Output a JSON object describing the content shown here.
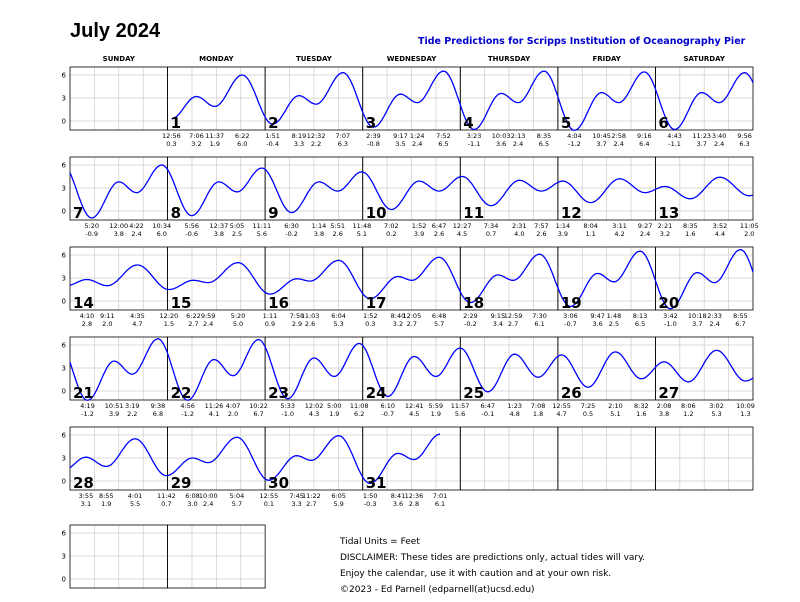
{
  "title": "July 2024",
  "subtitle": "Tide Predictions for Scripps Institution of Oceanography Pier",
  "weekdays": [
    "SUNDAY",
    "MONDAY",
    "TUESDAY",
    "WEDNESDAY",
    "THURSDAY",
    "FRIDAY",
    "SATURDAY"
  ],
  "footer": [
    "Tidal Units = Feet",
    "DISCLAIMER: These tides are predictions only, actual tides will vary.",
    "Enjoy the calendar, use it with caution and at your own risk.",
    "©2023 - Ed Parnell (edparnell(at)ucsd.edu)"
  ],
  "colors": {
    "curve": "#0000ff",
    "grid": "#cccccc",
    "border": "#000000",
    "subtitle": "#0000cc"
  },
  "chart_data": {
    "type": "line",
    "ylabel": "",
    "yticks": [
      0,
      3,
      6
    ],
    "ylim": [
      -1.5,
      7
    ],
    "grid": true,
    "units": "Feet",
    "first_weekday_index": 1,
    "days": [
      {
        "day": 1,
        "tides": [
          [
            "12:56",
            0.3
          ],
          [
            "7:06",
            3.2
          ],
          [
            "11:37",
            1.9
          ],
          [
            "6:22",
            6.0
          ]
        ]
      },
      {
        "day": 2,
        "tides": [
          [
            "1:51",
            -0.4
          ],
          [
            "8:19",
            3.3
          ],
          [
            "12:32",
            2.2
          ],
          [
            "7:07",
            6.3
          ]
        ]
      },
      {
        "day": 3,
        "tides": [
          [
            "2:39",
            -0.8
          ],
          [
            "9:17",
            3.5
          ],
          [
            "1:24",
            2.4
          ],
          [
            "7:52",
            6.5
          ]
        ]
      },
      {
        "day": 4,
        "tides": [
          [
            "3:23",
            -1.1
          ],
          [
            "10:03",
            3.6
          ],
          [
            "2:13",
            2.4
          ],
          [
            "8:35",
            6.5
          ]
        ]
      },
      {
        "day": 5,
        "tides": [
          [
            "4:04",
            -1.2
          ],
          [
            "10:45",
            3.7
          ],
          [
            "2:58",
            2.4
          ],
          [
            "9:16",
            6.4
          ]
        ]
      },
      {
        "day": 6,
        "tides": [
          [
            "4:43",
            -1.1
          ],
          [
            "11:23",
            3.7
          ],
          [
            "3:40",
            2.4
          ],
          [
            "9:56",
            6.3
          ]
        ]
      },
      {
        "day": 7,
        "tides": [
          [
            "5:20",
            -0.9
          ],
          [
            "12:00",
            3.8
          ],
          [
            "4:22",
            2.4
          ],
          [
            "10:34",
            6.0
          ]
        ]
      },
      {
        "day": 8,
        "tides": [
          [
            "5:56",
            -0.6
          ],
          [
            "12:37",
            3.8
          ],
          [
            "5:05",
            2.5
          ],
          [
            "11:11",
            5.6
          ]
        ]
      },
      {
        "day": 9,
        "tides": [
          [
            "6:30",
            -0.2
          ],
          [
            "1:14",
            3.8
          ],
          [
            "5:51",
            2.6
          ],
          [
            "11:48",
            5.1
          ]
        ]
      },
      {
        "day": 10,
        "tides": [
          [
            "7:02",
            0.2
          ],
          [
            "1:52",
            3.9
          ],
          [
            "6:47",
            2.6
          ]
        ]
      },
      {
        "day": 11,
        "tides": [
          [
            "12:27",
            4.5
          ],
          [
            "7:34",
            0.7
          ],
          [
            "2:31",
            4.0
          ],
          [
            "7:57",
            2.6
          ]
        ]
      },
      {
        "day": 12,
        "tides": [
          [
            "1:14",
            3.9
          ],
          [
            "8:04",
            1.1
          ],
          [
            "3:11",
            4.2
          ],
          [
            "9:27",
            2.4
          ]
        ]
      },
      {
        "day": 13,
        "tides": [
          [
            "2:21",
            3.2
          ],
          [
            "8:35",
            1.6
          ],
          [
            "3:52",
            4.4
          ],
          [
            "11:05",
            2.0
          ]
        ]
      },
      {
        "day": 14,
        "tides": [
          [
            "4:10",
            2.8
          ],
          [
            "9:11",
            2.0
          ],
          [
            "4:35",
            4.7
          ]
        ]
      },
      {
        "day": 15,
        "tides": [
          [
            "12:20",
            1.5
          ],
          [
            "6:22",
            2.7
          ],
          [
            "9:59",
            2.4
          ],
          [
            "5:20",
            5.0
          ]
        ]
      },
      {
        "day": 16,
        "tides": [
          [
            "1:11",
            0.9
          ],
          [
            "7:50",
            2.9
          ],
          [
            "11:03",
            2.6
          ],
          [
            "6:04",
            5.3
          ]
        ]
      },
      {
        "day": 17,
        "tides": [
          [
            "1:52",
            0.3
          ],
          [
            "8:40",
            3.2
          ],
          [
            "12:05",
            2.7
          ],
          [
            "6:48",
            5.7
          ]
        ]
      },
      {
        "day": 18,
        "tides": [
          [
            "2:29",
            -0.2
          ],
          [
            "9:15",
            3.4
          ],
          [
            "12:59",
            2.7
          ],
          [
            "7:30",
            6.1
          ]
        ]
      },
      {
        "day": 19,
        "tides": [
          [
            "3:06",
            -0.7
          ],
          [
            "9:47",
            3.6
          ],
          [
            "1:48",
            2.5
          ],
          [
            "8:13",
            6.5
          ]
        ]
      },
      {
        "day": 20,
        "tides": [
          [
            "3:42",
            -1.0
          ],
          [
            "10:18",
            3.7
          ],
          [
            "2:33",
            2.4
          ],
          [
            "8:55",
            6.7
          ]
        ]
      },
      {
        "day": 21,
        "tides": [
          [
            "4:19",
            -1.2
          ],
          [
            "10:51",
            3.9
          ],
          [
            "3:19",
            2.2
          ],
          [
            "9:38",
            6.8
          ]
        ]
      },
      {
        "day": 22,
        "tides": [
          [
            "4:56",
            -1.2
          ],
          [
            "11:26",
            4.1
          ],
          [
            "4:07",
            2.0
          ],
          [
            "10:22",
            6.7
          ]
        ]
      },
      {
        "day": 23,
        "tides": [
          [
            "5:33",
            -1.0
          ],
          [
            "12:02",
            4.3
          ],
          [
            "5:00",
            1.9
          ],
          [
            "11:08",
            6.2
          ]
        ]
      },
      {
        "day": 24,
        "tides": [
          [
            "6:10",
            -0.7
          ],
          [
            "12:41",
            4.5
          ],
          [
            "5:59",
            1.9
          ],
          [
            "11:57",
            5.6
          ]
        ]
      },
      {
        "day": 25,
        "tides": [
          [
            "6:47",
            -0.1
          ],
          [
            "1:23",
            4.8
          ],
          [
            "7:08",
            1.8
          ]
        ]
      },
      {
        "day": 26,
        "tides": [
          [
            "12:55",
            4.7
          ],
          [
            "7:25",
            0.5
          ],
          [
            "2:10",
            5.1
          ],
          [
            "8:32",
            1.6
          ]
        ]
      },
      {
        "day": 27,
        "tides": [
          [
            "2:08",
            3.8
          ],
          [
            "8:06",
            1.2
          ],
          [
            "3:02",
            5.3
          ],
          [
            "10:09",
            1.3
          ]
        ]
      },
      {
        "day": 28,
        "tides": [
          [
            "3:55",
            3.1
          ],
          [
            "8:55",
            1.9
          ],
          [
            "4:01",
            5.5
          ],
          [
            "11:42",
            0.7
          ]
        ]
      },
      {
        "day": 29,
        "tides": [
          [
            "6:08",
            3.0
          ],
          [
            "10:00",
            2.4
          ],
          [
            "5:04",
            5.7
          ]
        ]
      },
      {
        "day": 30,
        "tides": [
          [
            "12:55",
            0.1
          ],
          [
            "7:45",
            3.3
          ],
          [
            "11:22",
            2.7
          ],
          [
            "6:05",
            5.9
          ]
        ]
      },
      {
        "day": 31,
        "tides": [
          [
            "1:50",
            -0.3
          ],
          [
            "8:41",
            3.6
          ],
          [
            "12:36",
            2.8
          ],
          [
            "7:01",
            6.1
          ]
        ]
      }
    ]
  }
}
